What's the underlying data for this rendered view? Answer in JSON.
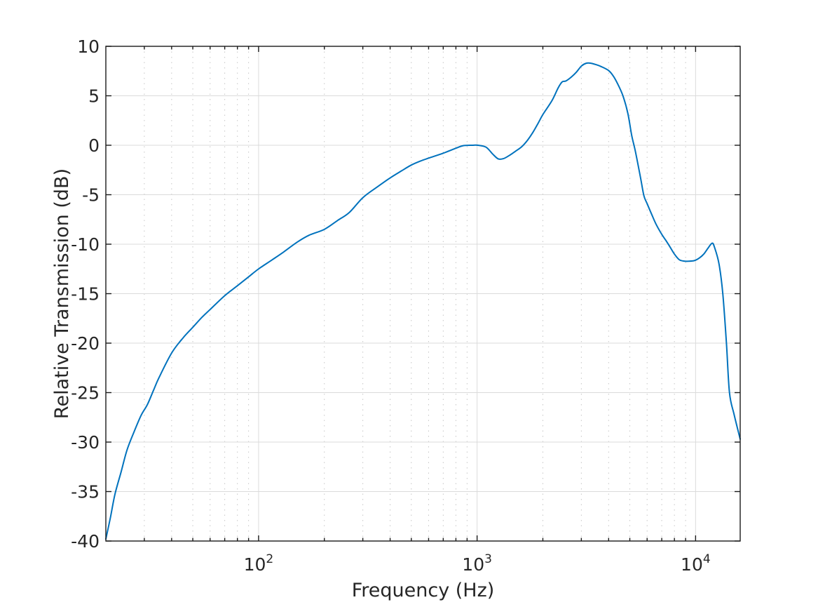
{
  "figure": {
    "background": "#ffffff"
  },
  "chart_data": {
    "type": "line",
    "title": "",
    "xlabel": "Frequency (Hz)",
    "ylabel": "Relative Transmission (dB)",
    "x_scale": "log",
    "xlim": [
      20,
      16000
    ],
    "ylim": [
      -40,
      10
    ],
    "grid": {
      "major": "solid",
      "minor": "dotted",
      "major_color": "#dbdbdb",
      "minor_color": "#c6c6c6"
    },
    "axis_color": "#1a1a1a",
    "line_color": "#0072bd",
    "x_major_ticks": [
      100,
      1000,
      10000
    ],
    "x_major_tick_labels": [
      {
        "mantissa": "10",
        "exponent": "2"
      },
      {
        "mantissa": "10",
        "exponent": "3"
      },
      {
        "mantissa": "10",
        "exponent": "4"
      }
    ],
    "x_minor_ticks": [
      30,
      40,
      50,
      60,
      70,
      80,
      90,
      200,
      300,
      400,
      500,
      600,
      700,
      800,
      900,
      2000,
      3000,
      4000,
      5000,
      6000,
      7000,
      8000,
      9000
    ],
    "y_ticks": [
      10,
      5,
      0,
      -5,
      -10,
      -15,
      -20,
      -25,
      -30,
      -35,
      -40
    ],
    "y_tick_labels": [
      "10",
      "5",
      "0",
      "-5",
      "-10",
      "-15",
      "-20",
      "-25",
      "-30",
      "-35",
      "-40"
    ],
    "legend": null,
    "series": [
      {
        "name": "relative-transmission",
        "color": "#0072bd",
        "x": [
          20,
          21,
          22,
          23.5,
          25,
          27,
          29,
          31,
          33,
          35,
          40,
          45,
          50,
          55,
          60,
          70,
          80,
          90,
          100,
          115,
          130,
          150,
          170,
          200,
          230,
          260,
          300,
          350,
          400,
          450,
          500,
          550,
          600,
          700,
          800,
          860,
          950,
          1010,
          1100,
          1180,
          1250,
          1320,
          1400,
          1500,
          1600,
          1700,
          1800,
          1900,
          2000,
          2200,
          2350,
          2450,
          2550,
          2700,
          2850,
          3000,
          3150,
          3300,
          3500,
          3700,
          4000,
          4200,
          4400,
          4650,
          4900,
          5100,
          5300,
          5600,
          5800,
          6000,
          6300,
          6600,
          7000,
          7300,
          7600,
          8000,
          8400,
          8800,
          9300,
          9900,
          10400,
          10900,
          11400,
          11900,
          12200,
          12800,
          13320,
          13840,
          14290,
          15000,
          16000
        ],
        "y": [
          -39.8,
          -37.6,
          -35.3,
          -33.0,
          -30.8,
          -28.9,
          -27.3,
          -26.2,
          -24.8,
          -23.5,
          -21.0,
          -19.5,
          -18.4,
          -17.4,
          -16.6,
          -15.2,
          -14.2,
          -13.3,
          -12.5,
          -11.6,
          -10.8,
          -9.8,
          -9.1,
          -8.5,
          -7.6,
          -6.8,
          -5.3,
          -4.2,
          -3.3,
          -2.6,
          -2.0,
          -1.6,
          -1.3,
          -0.8,
          -0.3,
          -0.05,
          0.0,
          0.0,
          -0.2,
          -0.9,
          -1.38,
          -1.35,
          -1.05,
          -0.6,
          -0.15,
          0.5,
          1.3,
          2.2,
          3.1,
          4.5,
          5.8,
          6.4,
          6.5,
          6.9,
          7.4,
          8.0,
          8.28,
          8.3,
          8.15,
          7.95,
          7.55,
          7.0,
          6.2,
          5.0,
          3.2,
          1.0,
          -0.6,
          -3.3,
          -5.1,
          -5.9,
          -7.0,
          -8.0,
          -9.0,
          -9.6,
          -10.2,
          -11.0,
          -11.55,
          -11.7,
          -11.72,
          -11.65,
          -11.4,
          -11.0,
          -10.4,
          -9.9,
          -10.3,
          -12.0,
          -15.0,
          -20.0,
          -25.0,
          -27.2,
          -29.7
        ]
      }
    ]
  }
}
